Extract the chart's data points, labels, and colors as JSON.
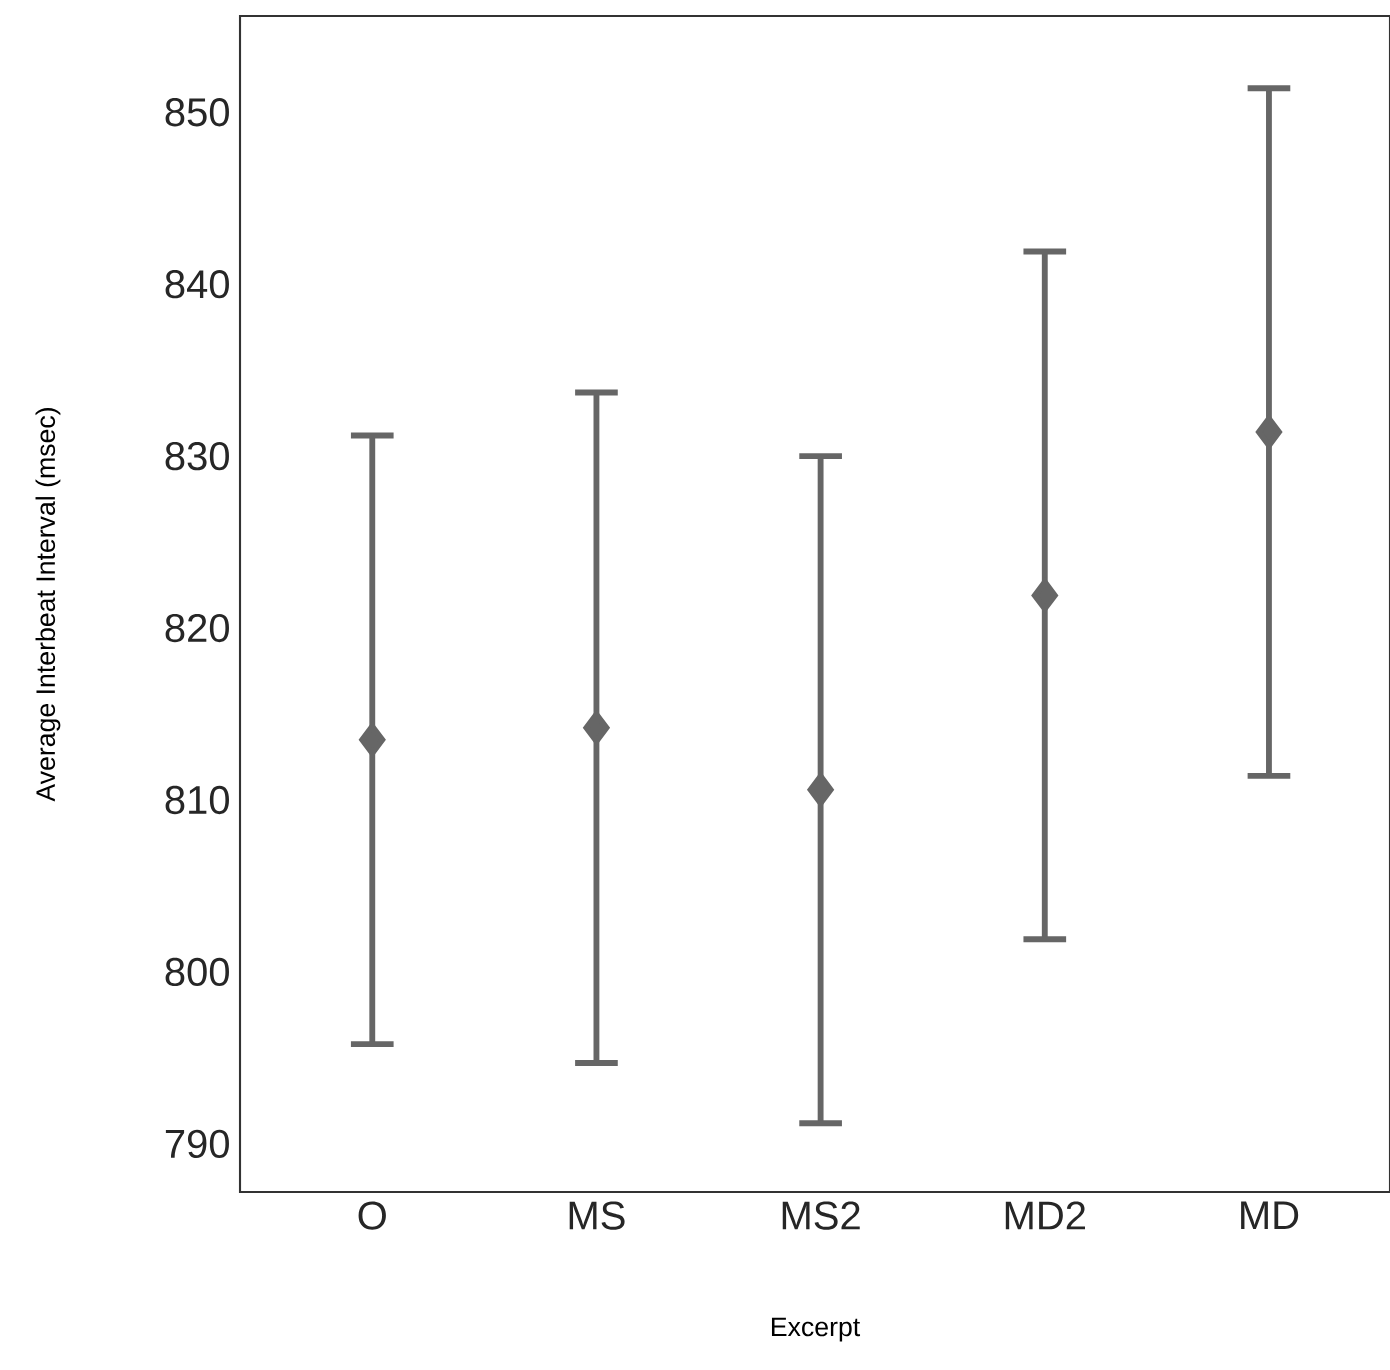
{
  "chart_data": {
    "type": "scatter",
    "xlabel": "Excerpt",
    "ylabel": "Average Interbeat Interval (msec)",
    "categories": [
      "O",
      "MS",
      "MS2",
      "MD2",
      "MD"
    ],
    "values": [
      813.5,
      814.2,
      810.6,
      821.9,
      831.4
    ],
    "errors": [
      17.7,
      19.5,
      19.4,
      20,
      20
    ],
    "color": "#666666",
    "marker": "diamond",
    "ylim": [
      787.2,
      855.6
    ],
    "yticks": [
      790,
      800,
      810,
      820,
      830,
      840,
      850
    ],
    "grid": false
  }
}
